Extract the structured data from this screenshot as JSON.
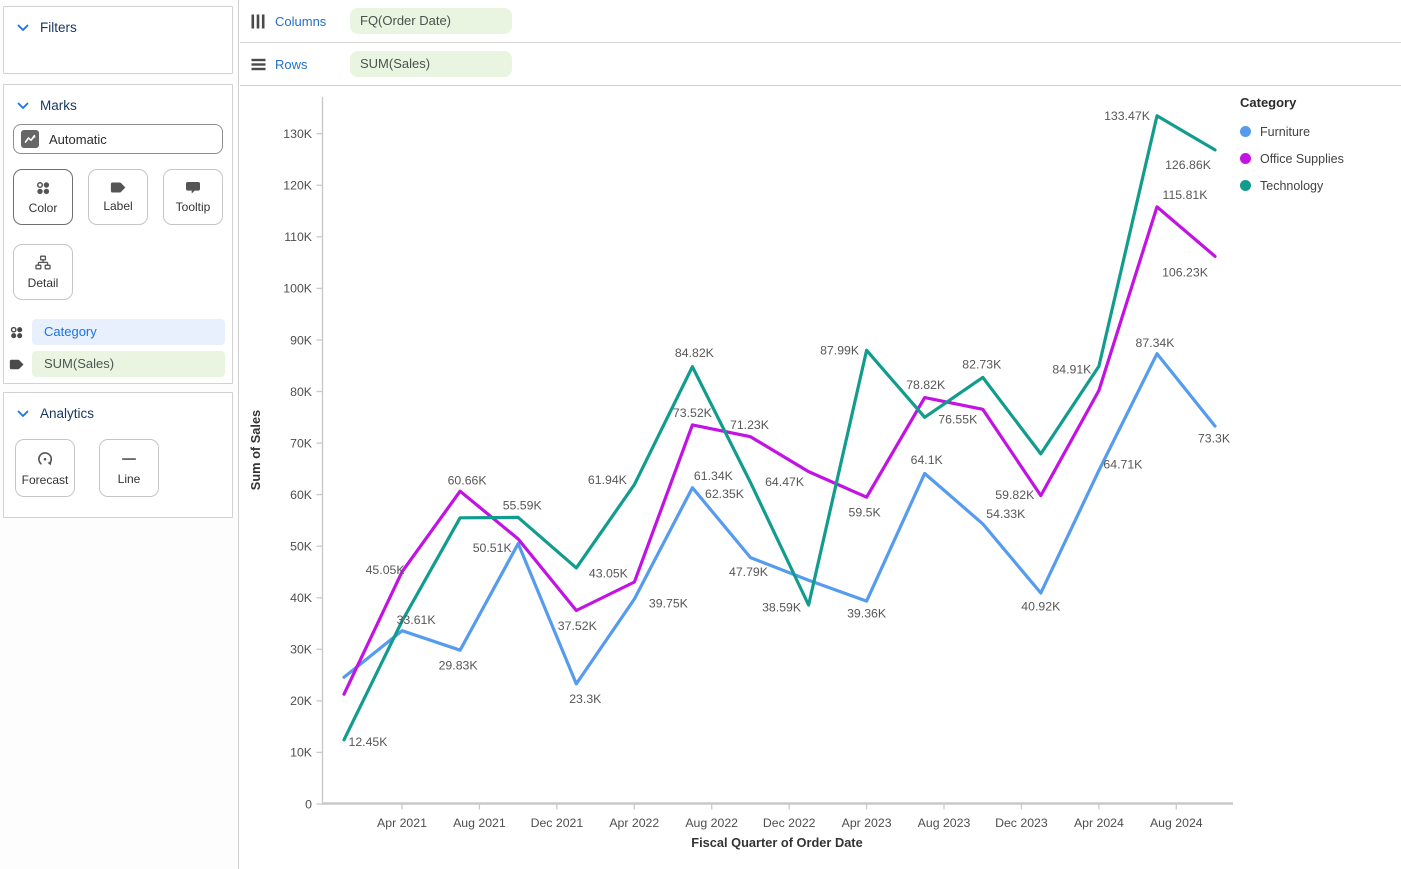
{
  "shelves": {
    "columns": {
      "label": "Columns",
      "pill": "FQ(Order Date)"
    },
    "rows": {
      "label": "Rows",
      "pill": "SUM(Sales)"
    }
  },
  "sidebar": {
    "filters": {
      "header": "Filters"
    },
    "marks": {
      "header": "Marks",
      "mark_type": "Automatic",
      "buttons": [
        {
          "label": "Color",
          "icon": "color-dots-icon",
          "selected": true
        },
        {
          "label": "Label",
          "icon": "label-tag-icon",
          "selected": false
        },
        {
          "label": "Tooltip",
          "icon": "tooltip-bubble-icon",
          "selected": false
        },
        {
          "label": "Detail",
          "icon": "detail-hierarchy-icon",
          "selected": false
        }
      ],
      "pills": [
        {
          "label": "Category",
          "icon": "color-dots-icon"
        },
        {
          "label": "SUM(Sales)",
          "icon": "label-tag-icon"
        }
      ]
    },
    "analytics": {
      "header": "Analytics",
      "buttons": [
        {
          "label": "Forecast",
          "icon": "forecast-icon"
        },
        {
          "label": "Line",
          "icon": "line-icon"
        }
      ]
    }
  },
  "legend": {
    "title": "Category",
    "items": [
      {
        "label": "Furniture",
        "color": "#559bee"
      },
      {
        "label": "Office Supplies",
        "color": "#c212e4"
      },
      {
        "label": "Technology",
        "color": "#119c8d"
      }
    ]
  },
  "chart_data": {
    "type": "line",
    "title": "",
    "xlabel": "Fiscal Quarter of Order Date",
    "ylabel": "Sum of Sales",
    "x_ticks": [
      "Apr 2021",
      "Aug 2021",
      "Dec 2021",
      "Apr 2022",
      "Aug 2022",
      "Dec 2022",
      "Apr 2023",
      "Aug 2023",
      "Dec 2023",
      "Apr 2024",
      "Aug 2024"
    ],
    "y_ticks": [
      "0",
      "10K",
      "20K",
      "30K",
      "40K",
      "50K",
      "60K",
      "70K",
      "80K",
      "90K",
      "100K",
      "110K",
      "120K",
      "130K"
    ],
    "ylim": [
      0,
      137
    ],
    "grid": false,
    "legend_position": "top-right",
    "points_per_series": 16,
    "values_unit": "K",
    "series": [
      {
        "name": "Furniture",
        "color": "#559bee",
        "values": [
          24.6,
          33.61,
          29.83,
          50.51,
          23.3,
          39.75,
          61.34,
          47.79,
          43.4,
          39.36,
          64.1,
          54.33,
          40.92,
          64.71,
          87.34,
          73.3
        ],
        "labels": [
          {
            "i": 1,
            "text": "33.61K",
            "dx": 14,
            "dy": -11
          },
          {
            "i": 2,
            "text": "29.83K",
            "dx": -2,
            "dy": 15
          },
          {
            "i": 3,
            "text": "50.51K",
            "dx": -26,
            "dy": 4
          },
          {
            "i": 4,
            "text": "23.3K",
            "dx": 9,
            "dy": 15
          },
          {
            "i": 5,
            "text": "39.75K",
            "dx": 34,
            "dy": 4
          },
          {
            "i": 6,
            "text": "61.34K",
            "dx": 21,
            "dy": -12
          },
          {
            "i": 7,
            "text": "47.79K",
            "dx": -2,
            "dy": 14
          },
          {
            "i": 9,
            "text": "39.36K",
            "dx": 0,
            "dy": 12
          },
          {
            "i": 10,
            "text": "64.1K",
            "dx": 2,
            "dy": -14
          },
          {
            "i": 11,
            "text": "54.33K",
            "dx": 23,
            "dy": -10
          },
          {
            "i": 12,
            "text": "40.92K",
            "dx": 0,
            "dy": 13
          },
          {
            "i": 13,
            "text": "64.71K",
            "dx": 24,
            "dy": -6
          },
          {
            "i": 14,
            "text": "87.34K",
            "dx": -2,
            "dy": -11
          },
          {
            "i": 15,
            "text": "73.3K",
            "dx": -1,
            "dy": 12
          }
        ]
      },
      {
        "name": "Office Supplies",
        "color": "#c212e4",
        "values": [
          21.3,
          45.05,
          60.66,
          51.4,
          37.52,
          43.05,
          73.52,
          71.23,
          64.47,
          59.5,
          78.82,
          76.55,
          59.82,
          80.2,
          115.81,
          106.23
        ],
        "labels": [
          {
            "i": 1,
            "text": "45.05K",
            "dx": -17,
            "dy": -2
          },
          {
            "i": 2,
            "text": "60.66K",
            "dx": 7,
            "dy": -11
          },
          {
            "i": 4,
            "text": "37.52K",
            "dx": 1,
            "dy": 15
          },
          {
            "i": 5,
            "text": "43.05K",
            "dx": -26,
            "dy": -9
          },
          {
            "i": 6,
            "text": "73.52K",
            "dx": 0,
            "dy": -12
          },
          {
            "i": 7,
            "text": "71.23K",
            "dx": -1,
            "dy": -12
          },
          {
            "i": 8,
            "text": "64.47K",
            "dx": -24,
            "dy": 10
          },
          {
            "i": 9,
            "text": "59.5K",
            "dx": -2,
            "dy": 15
          },
          {
            "i": 10,
            "text": "78.82K",
            "dx": 1,
            "dy": -13
          },
          {
            "i": 11,
            "text": "76.55K",
            "dx": -25,
            "dy": 10
          },
          {
            "i": 12,
            "text": "59.82K",
            "dx": -26,
            "dy": -1
          },
          {
            "i": 14,
            "text": "115.81K",
            "dx": 28,
            "dy": -12
          },
          {
            "i": 15,
            "text": "106.23K",
            "dx": -30,
            "dy": 16
          }
        ]
      },
      {
        "name": "Technology",
        "color": "#119c8d",
        "values": [
          12.45,
          35.5,
          55.5,
          55.59,
          45.8,
          61.94,
          84.82,
          62.35,
          38.59,
          87.99,
          75.0,
          82.73,
          67.9,
          84.91,
          133.47,
          126.86
        ],
        "labels": [
          {
            "i": 0,
            "text": "12.45K",
            "dx": 24,
            "dy": 2
          },
          {
            "i": 3,
            "text": "55.59K",
            "dx": 4,
            "dy": -12
          },
          {
            "i": 5,
            "text": "61.94K",
            "dx": -27,
            "dy": -5
          },
          {
            "i": 6,
            "text": "84.82K",
            "dx": 2,
            "dy": -14
          },
          {
            "i": 7,
            "text": "62.35K",
            "dx": -26,
            "dy": 11
          },
          {
            "i": 8,
            "text": "38.59K",
            "dx": -27,
            "dy": 2
          },
          {
            "i": 9,
            "text": "87.99K",
            "dx": -27,
            "dy": 0
          },
          {
            "i": 11,
            "text": "82.73K",
            "dx": -1,
            "dy": -13
          },
          {
            "i": 13,
            "text": "84.91K",
            "dx": -27,
            "dy": 3
          },
          {
            "i": 14,
            "text": "133.47K",
            "dx": -30,
            "dy": 0
          },
          {
            "i": 15,
            "text": "126.86K",
            "dx": -27,
            "dy": 15
          }
        ]
      }
    ]
  }
}
